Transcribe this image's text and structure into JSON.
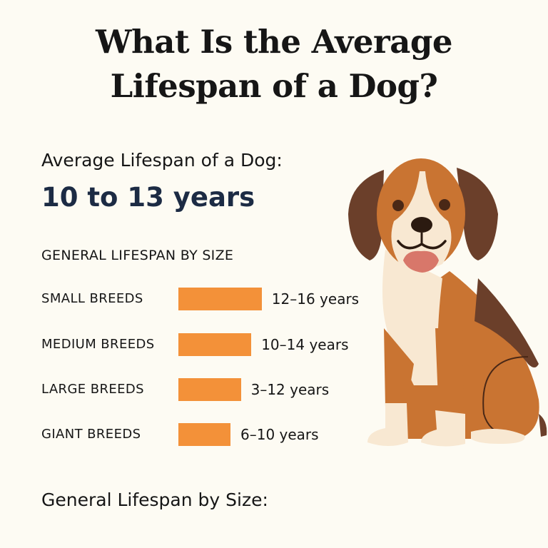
{
  "title_lines": [
    "What Is the Average",
    "Lifespan of a Dog?"
  ],
  "subtitle": "Average Lifespan of a Dog:",
  "average_range": "10 to 13 years",
  "chart_data": {
    "type": "bar",
    "title": "GENERAL LIFESPAN BY SIZE",
    "orientation": "horizontal",
    "categories": [
      "SMALL BREEDS",
      "MEDIUM BREEDS",
      "LARGE BREEDS",
      "GIANT BREEDS"
    ],
    "ranges": [
      [
        12,
        16
      ],
      [
        10,
        14
      ],
      [
        3,
        12
      ],
      [
        6,
        10
      ]
    ],
    "data_labels": [
      "12–16 years",
      "10–14 years",
      "3–12 years",
      "6–10 years"
    ],
    "bar_color": "#f39139",
    "grid": false
  },
  "footer": "General Lifespan by Size:",
  "colors": {
    "background": "#fdfbf3",
    "accent_text": "#1c2b44",
    "dog_fur": "#c97432",
    "dog_dark": "#6b3f2a",
    "dog_cream": "#f8e8d2"
  },
  "illustration": "beagle-dog"
}
